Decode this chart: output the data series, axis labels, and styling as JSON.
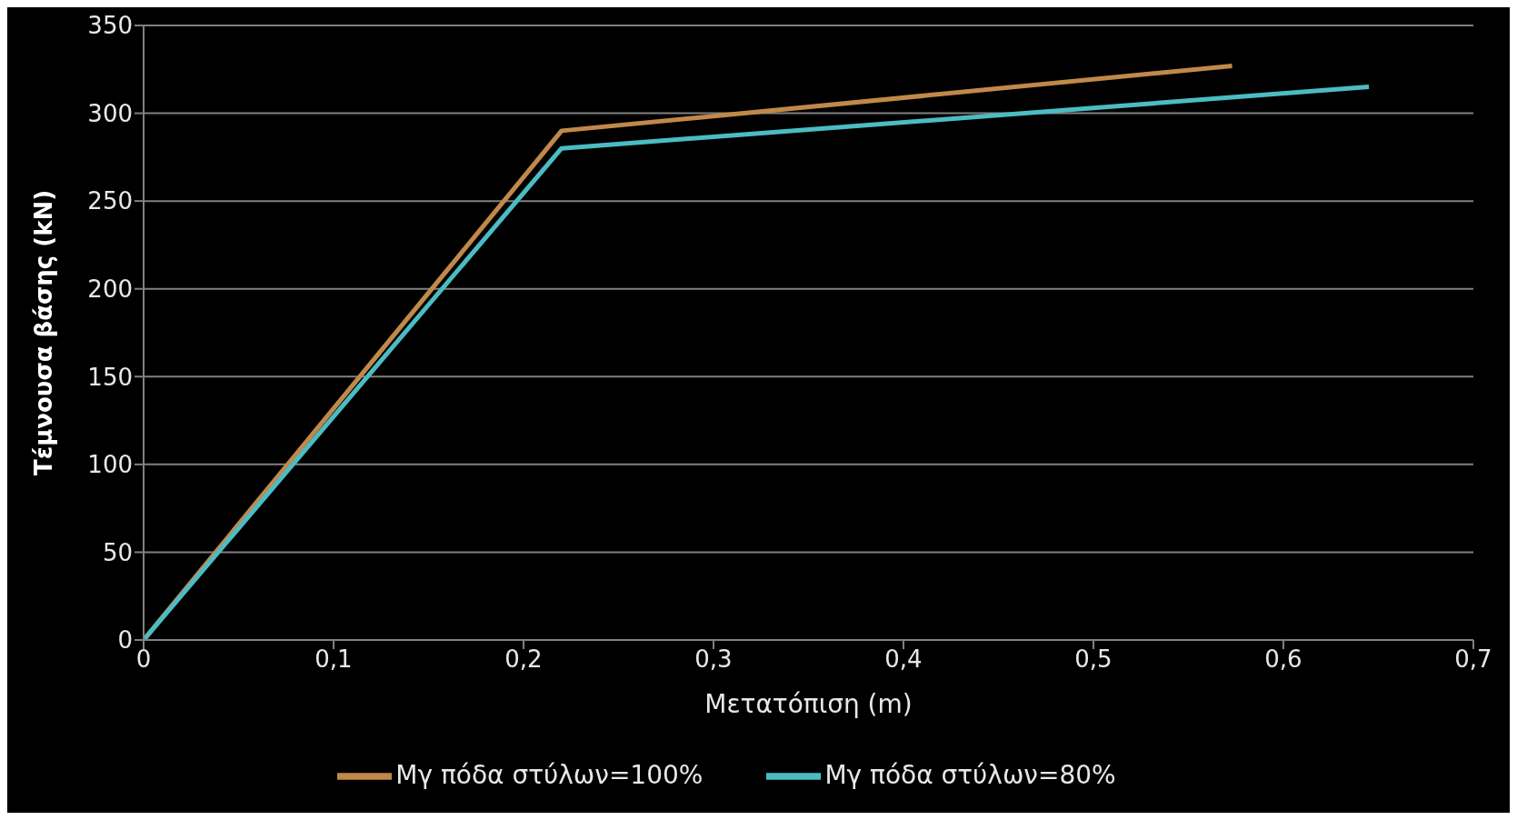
{
  "chart_data": {
    "type": "line",
    "xlabel": "Μετατόπιση (m)",
    "ylabel": "Τέμνουσα βάσης (kN)",
    "xlim": [
      0,
      0.7
    ],
    "ylim": [
      0,
      350
    ],
    "xticks": [
      0,
      {
        "value": 0.1,
        "label": "0,1"
      },
      {
        "value": 0.2,
        "label": "0,2"
      },
      {
        "value": 0.3,
        "label": "0,3"
      },
      {
        "value": 0.4,
        "label": "0,4"
      },
      {
        "value": 0.5,
        "label": "0,5"
      },
      {
        "value": 0.6,
        "label": "0,6"
      },
      {
        "value": 0.7,
        "label": "0,7"
      }
    ],
    "yticks": [
      0,
      50,
      100,
      150,
      200,
      250,
      300,
      350
    ],
    "grid": "y",
    "legend": "bottom",
    "marker": "none",
    "line_style": "solid",
    "series": [
      {
        "name": "Μγ πόδα στύλων=100%",
        "color": "#c0894a",
        "x": [
          0,
          0.22,
          0.573
        ],
        "values": [
          0,
          290,
          327
        ]
      },
      {
        "name": "Μγ πόδα στύλων=80%",
        "color": "#4bbcc4",
        "x": [
          0,
          0.22,
          0.645
        ],
        "values": [
          0,
          280,
          315
        ]
      }
    ]
  }
}
